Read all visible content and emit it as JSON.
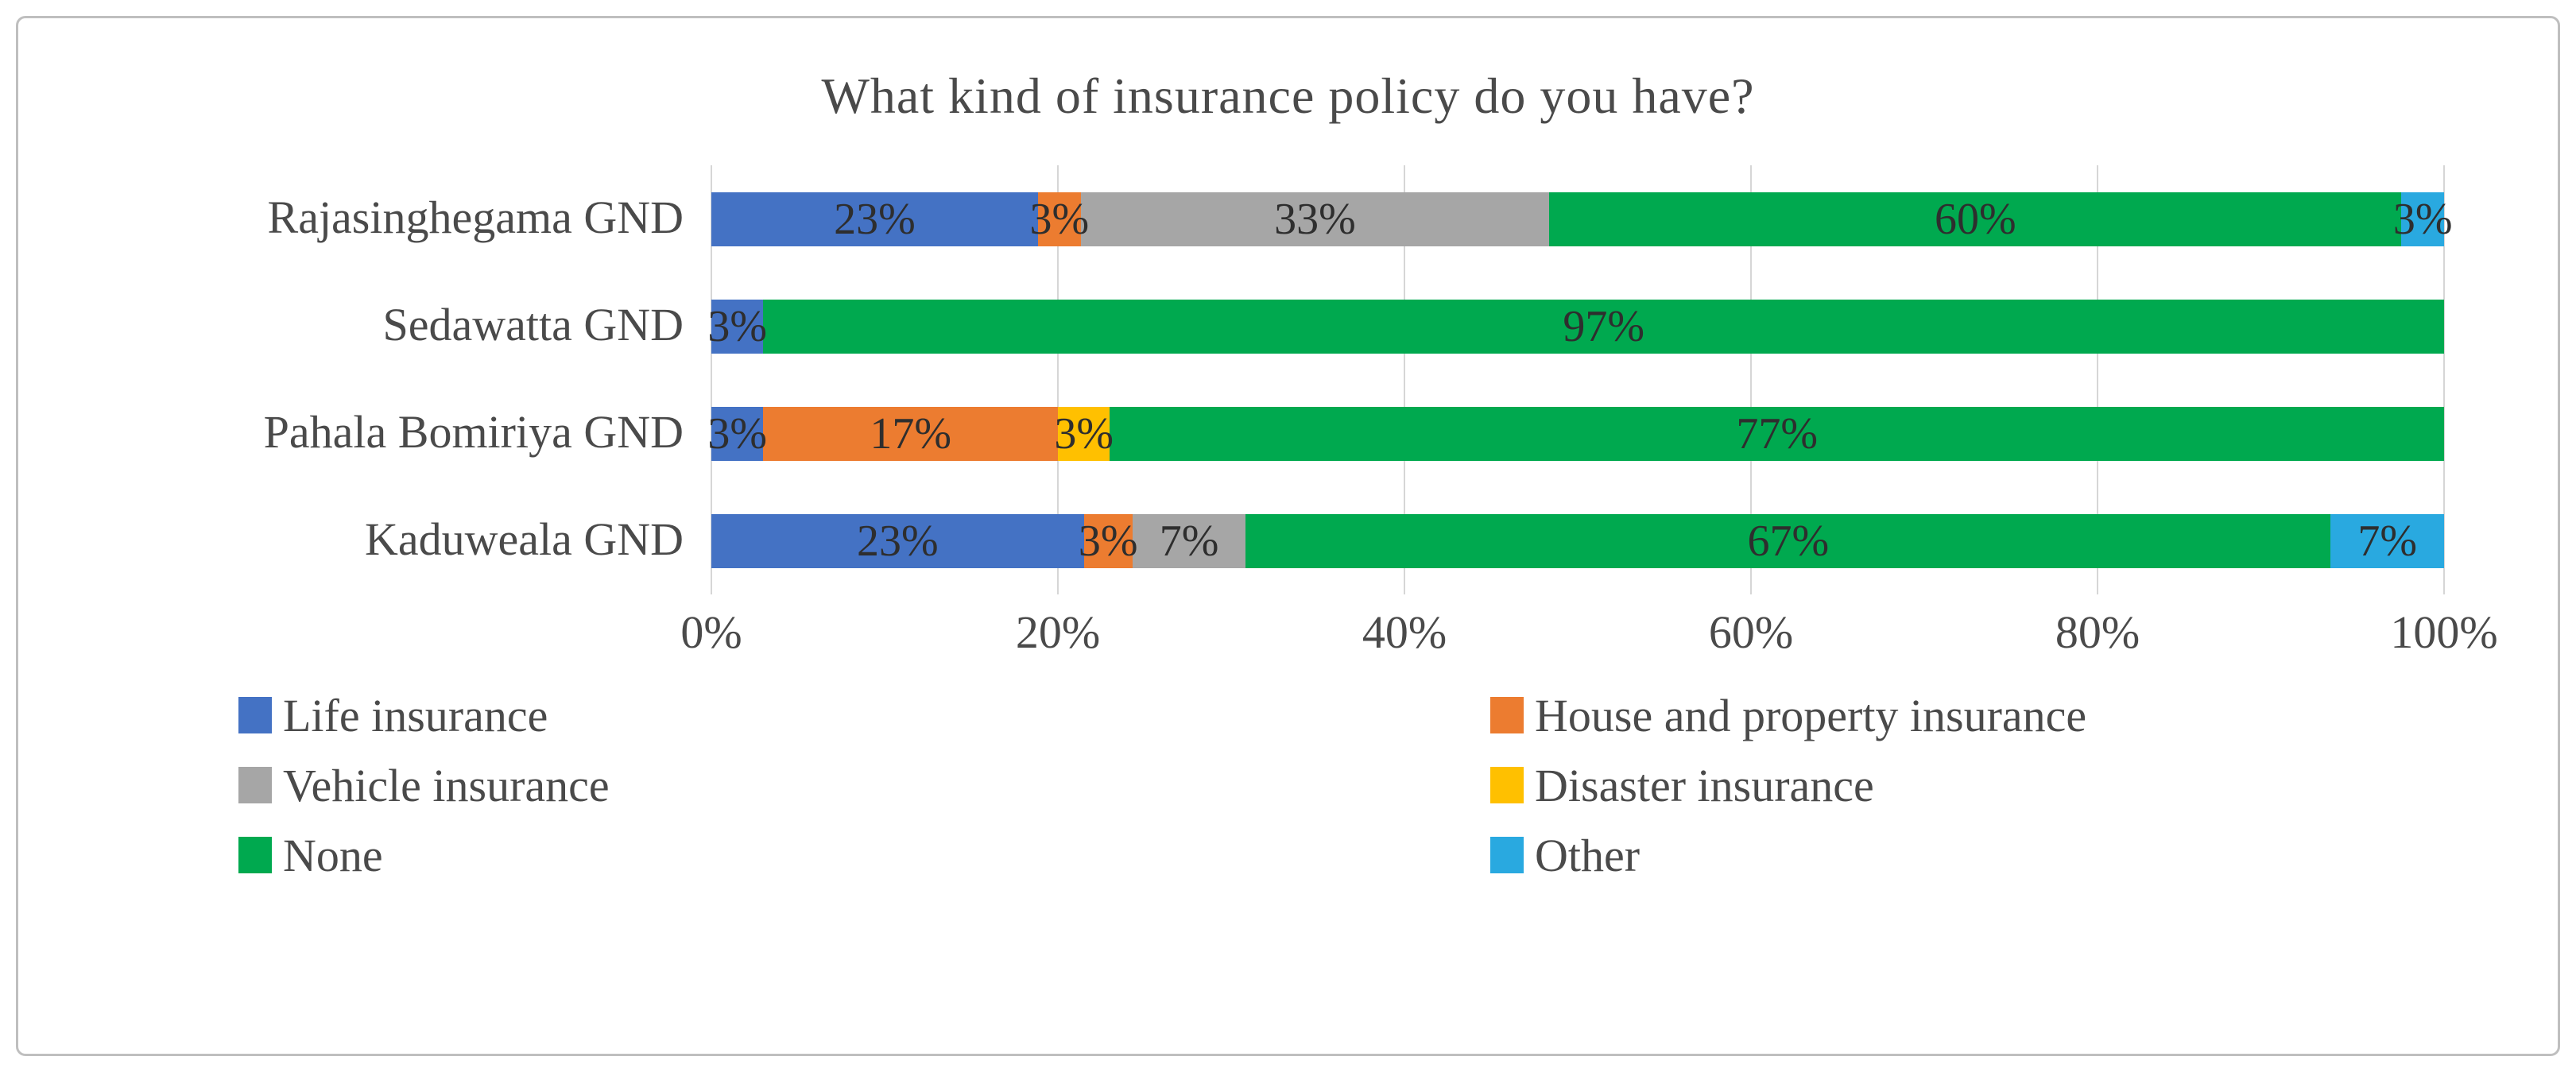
{
  "chart_data": {
    "type": "bar",
    "orientation": "horizontal",
    "stacked": true,
    "normalized_to_100": true,
    "title": "What kind of insurance policy do you have?",
    "categories": [
      "Rajasinghegama GND",
      "Sedawatta GND",
      "Pahala Bomiriya GND",
      "Kaduweala GND"
    ],
    "series": [
      {
        "name": "Life insurance",
        "color": "#4472c4",
        "values": [
          23,
          3,
          3,
          23
        ]
      },
      {
        "name": "House and property insurance",
        "color": "#ec7c30",
        "values": [
          3,
          0,
          17,
          3
        ]
      },
      {
        "name": "Vehicle insurance",
        "color": "#a6a6a6",
        "values": [
          33,
          0,
          0,
          7
        ]
      },
      {
        "name": "Disaster insurance",
        "color": "#ffc000",
        "values": [
          0,
          0,
          3,
          0
        ]
      },
      {
        "name": "None",
        "color": "#00a94f",
        "values": [
          60,
          97,
          77,
          67
        ]
      },
      {
        "name": "Other",
        "color": "#29a9e0",
        "values": [
          3,
          0,
          0,
          7
        ]
      }
    ],
    "data_label_suffix": "%",
    "x_ticks": [
      "0%",
      "20%",
      "40%",
      "60%",
      "80%",
      "100%"
    ],
    "xlim": [
      0,
      100
    ],
    "grid": true,
    "legend_position": "bottom-two-columns"
  }
}
